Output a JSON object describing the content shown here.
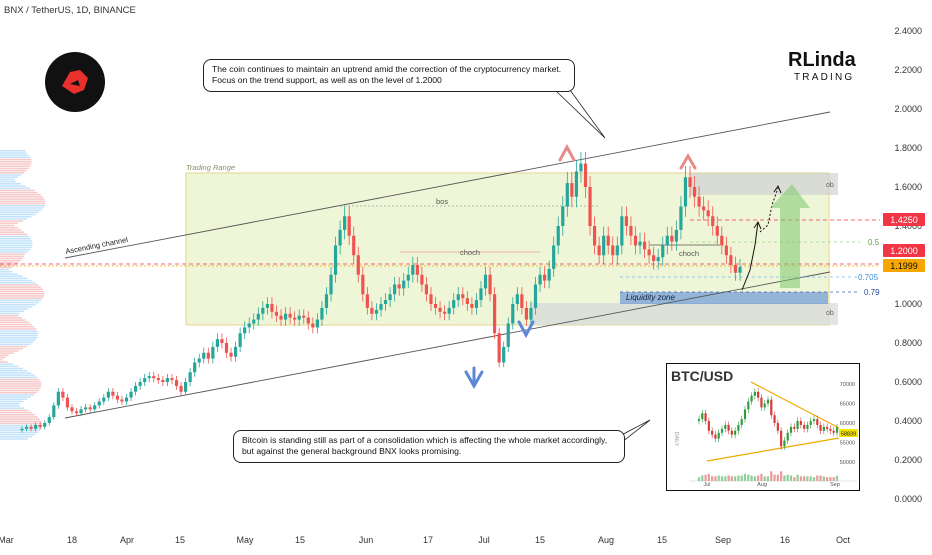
{
  "header": {
    "symbol_title": "BNX / TetherUS, 1D, BINANCE"
  },
  "branding": {
    "logo_line1": "RLinda",
    "logo_line2": "TRADING",
    "badge_color": "#e8302c"
  },
  "annotations": {
    "top_callout": [
      "The coin continues to maintain an uptrend amid the correction of the cryptocurrency market.",
      "Focus on the trend support, as well as on the level of 1.2000"
    ],
    "bottom_callout": [
      "Bitcoin is standing still as part of a consolidation which is affecting the whole market accordingly,",
      "but against the general background BNX looks promising."
    ],
    "trading_range": "Trading Range",
    "ascending_channel": "Ascending channel",
    "bos": "bos",
    "choch_1": "choch",
    "choch_2": "choch",
    "liquidity_zone": "Liquidity zone",
    "ob_top": "ob",
    "ob_bottom": "ob",
    "fib_05": "0.5",
    "fib_0705": "0.705",
    "fib_079": "0.79"
  },
  "price_tags": {
    "level_1": {
      "text": "1.4250",
      "color": "#f23645"
    },
    "level_2": {
      "text": "1.2000",
      "color": "#f23645"
    },
    "current": {
      "text": "1.1999",
      "color": "#f7a600"
    }
  },
  "colors": {
    "up": "#26a69a",
    "down": "#ef5350",
    "range_fill": "#e9f3c9",
    "range_border": "#e4d48f",
    "arrow_green": "#7bc96f"
  },
  "chart_data": {
    "type": "candlestick",
    "y_ticks": [
      "2.4000",
      "2.2000",
      "2.0000",
      "1.8000",
      "1.6000",
      "1.4000",
      "1.2000",
      "1.0000",
      "0.8000",
      "0.6000",
      "0.4000",
      "0.2000",
      "0.0000"
    ],
    "x_ticks": [
      "Mar",
      "18",
      "Apr",
      "15",
      "May",
      "15",
      "Jun",
      "17",
      "Jul",
      "15",
      "Aug",
      "15",
      "Sep",
      "16",
      "Oct"
    ],
    "ylim": [
      0,
      2.4
    ],
    "levels": {
      "resistance": 1.425,
      "support": 1.2,
      "current": 1.1999
    },
    "closes": [
      0.36,
      0.37,
      0.36,
      0.38,
      0.37,
      0.39,
      0.42,
      0.48,
      0.55,
      0.52,
      0.47,
      0.45,
      0.44,
      0.46,
      0.47,
      0.46,
      0.48,
      0.5,
      0.52,
      0.55,
      0.53,
      0.51,
      0.5,
      0.52,
      0.55,
      0.58,
      0.6,
      0.62,
      0.63,
      0.62,
      0.61,
      0.6,
      0.62,
      0.61,
      0.58,
      0.55,
      0.6,
      0.65,
      0.7,
      0.72,
      0.75,
      0.72,
      0.78,
      0.82,
      0.8,
      0.75,
      0.73,
      0.78,
      0.85,
      0.88,
      0.9,
      0.92,
      0.95,
      0.98,
      1.0,
      0.96,
      0.94,
      0.92,
      0.95,
      0.93,
      0.92,
      0.94,
      0.93,
      0.9,
      0.88,
      0.92,
      0.98,
      1.05,
      1.15,
      1.3,
      1.38,
      1.45,
      1.35,
      1.25,
      1.15,
      1.05,
      0.98,
      0.95,
      0.97,
      1.0,
      1.02,
      1.05,
      1.1,
      1.08,
      1.12,
      1.15,
      1.2,
      1.15,
      1.1,
      1.05,
      1.0,
      0.98,
      0.96,
      0.95,
      0.98,
      1.02,
      1.05,
      1.03,
      1.0,
      0.98,
      1.02,
      1.08,
      1.15,
      1.05,
      0.85,
      0.7,
      0.78,
      0.9,
      1.0,
      1.05,
      0.98,
      0.92,
      0.98,
      1.1,
      1.15,
      1.12,
      1.18,
      1.3,
      1.4,
      1.5,
      1.62,
      1.55,
      1.68,
      1.72,
      1.6,
      1.4,
      1.3,
      1.25,
      1.35,
      1.3,
      1.25,
      1.3,
      1.45,
      1.4,
      1.35,
      1.3,
      1.32,
      1.28,
      1.25,
      1.22,
      1.24,
      1.3,
      1.35,
      1.32,
      1.38,
      1.5,
      1.65,
      1.6,
      1.55,
      1.5,
      1.48,
      1.45,
      1.4,
      1.35,
      1.3,
      1.25,
      1.2,
      1.16,
      1.19
    ],
    "btc_inset": {
      "title": "BTC/USD",
      "y_ticks": [
        "70000",
        "65000",
        "60000",
        "55000",
        "50000"
      ],
      "x_ticks": [
        "Jul",
        "Aug",
        "Sep"
      ],
      "current_tag": "58839",
      "side_label": "DAILY",
      "closes": [
        61000,
        62500,
        60500,
        58000,
        57000,
        56000,
        57500,
        58500,
        59500,
        58000,
        57000,
        58000,
        59500,
        61000,
        63500,
        65500,
        67000,
        68000,
        66500,
        64000,
        65000,
        66000,
        62000,
        60000,
        58000,
        54000,
        55500,
        57500,
        59000,
        58500,
        60500,
        59500,
        58500,
        59500,
        60500,
        61000,
        59500,
        58000,
        59000,
        58500,
        58000,
        57500,
        58839
      ]
    }
  }
}
